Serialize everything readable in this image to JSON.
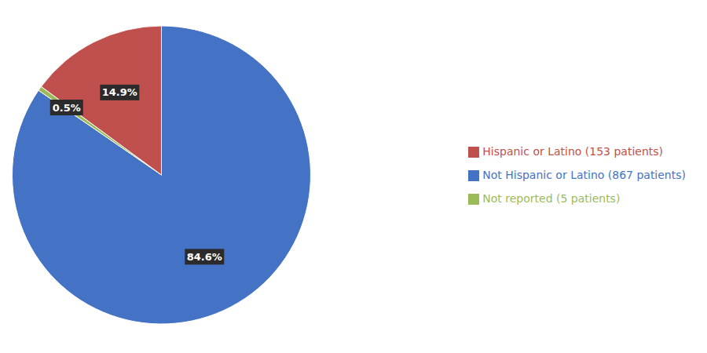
{
  "chart_data": {
    "type": "pie",
    "categories": [
      "Not Hispanic or Latino (867 patients)",
      "Not reported (5 patients)",
      "Hispanic or Latino (153 patients)"
    ],
    "values": [
      84.6,
      0.5,
      14.9
    ],
    "value_labels": [
      "84.6%",
      "0.5%",
      "14.9%"
    ],
    "colors": [
      "#4472C4",
      "#9BBB59",
      "#C0504D"
    ],
    "data_labels": true,
    "legend": "right"
  }
}
